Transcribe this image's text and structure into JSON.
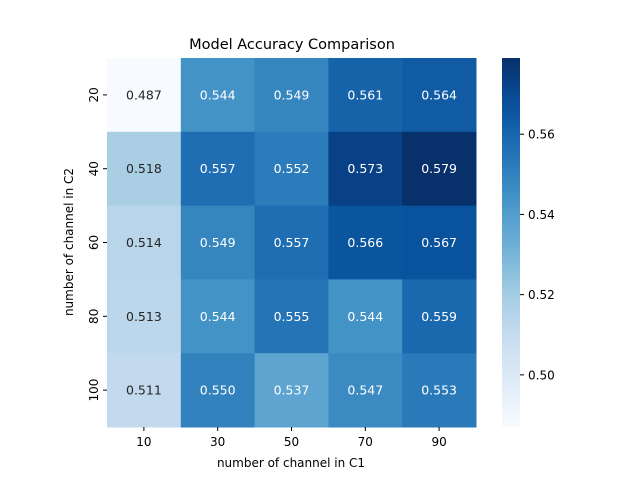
{
  "chart_data": {
    "type": "heatmap",
    "title": "Model Accuracy Comparison",
    "xlabel": "number of channel in C1",
    "ylabel": "number of channel in C2",
    "x": [
      "10",
      "30",
      "50",
      "70",
      "90"
    ],
    "y": [
      "20",
      "40",
      "60",
      "80",
      "100"
    ],
    "values": [
      [
        0.487,
        0.544,
        0.549,
        0.561,
        0.564
      ],
      [
        0.518,
        0.557,
        0.552,
        0.573,
        0.579
      ],
      [
        0.514,
        0.549,
        0.557,
        0.566,
        0.567
      ],
      [
        0.513,
        0.544,
        0.555,
        0.544,
        0.559
      ],
      [
        0.511,
        0.55,
        0.537,
        0.547,
        0.553
      ]
    ],
    "colormap": "Blues",
    "vmin": 0.487,
    "vmax": 0.579,
    "colorbar_ticks": [
      "0.50",
      "0.52",
      "0.54",
      "0.56"
    ],
    "colorbar_tick_values": [
      0.5,
      0.52,
      0.54,
      0.56
    ],
    "annotation_dark_color": "#262626",
    "annotation_light_color": "#ffffff",
    "grid": false
  }
}
